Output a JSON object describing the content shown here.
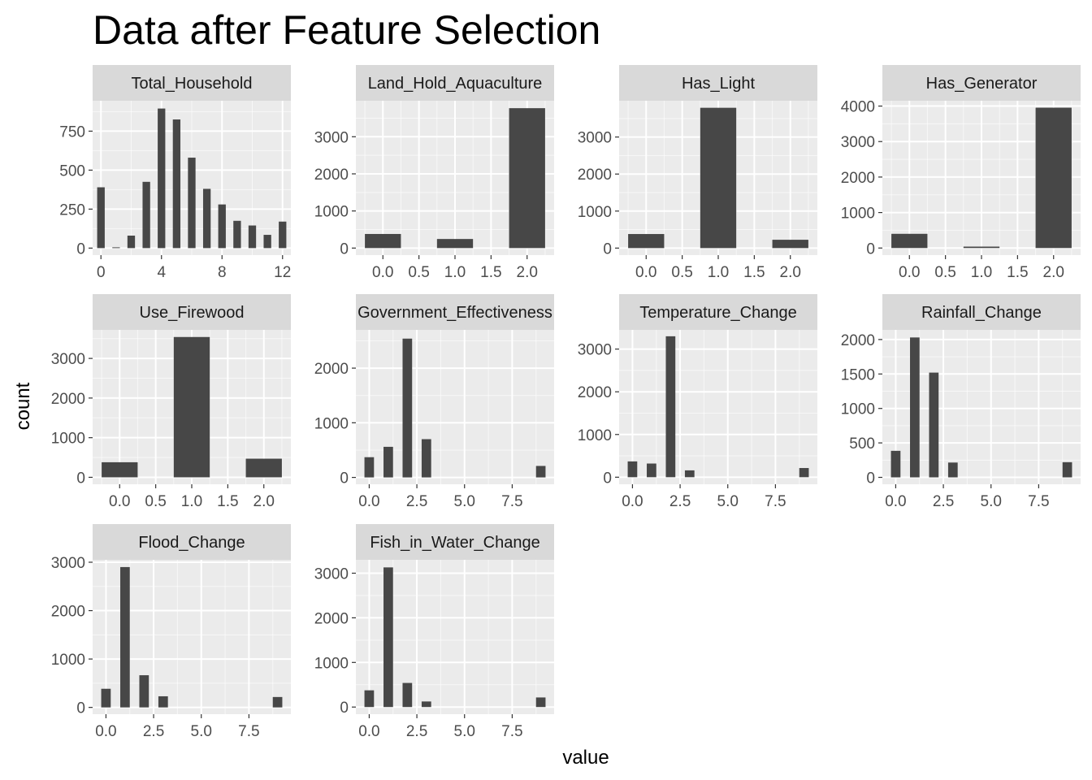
{
  "chart_data": {
    "type": "bar",
    "title": "Data after Feature Selection",
    "xlabel": "value",
    "ylabel": "count",
    "grid": true,
    "colors": {
      "bar": "#474747",
      "panel_background": "#ebebeb",
      "strip_background": "#d9d9d9",
      "grid_major": "#ffffff",
      "tick_text": "#4d4d4d"
    },
    "panels": [
      {
        "name": "Total_Household",
        "x": [
          0,
          1,
          2,
          3,
          4,
          5,
          6,
          7,
          8,
          9,
          10,
          11,
          12
        ],
        "values": [
          390,
          5,
          80,
          425,
          895,
          825,
          580,
          380,
          280,
          175,
          145,
          85,
          170
        ],
        "bin_width": 0.5,
        "xlim": [
          -0.55,
          12.55
        ],
        "ylim": [
          -45,
          945
        ],
        "x_ticks": [
          0,
          4,
          8,
          12
        ],
        "x_tick_labels": [
          "0",
          "4",
          "8",
          "12"
        ],
        "y_ticks": [
          0,
          250,
          500,
          750
        ],
        "y_tick_labels": [
          "0",
          "250",
          "500",
          "750"
        ]
      },
      {
        "name": "Land_Hold_Aquaculture",
        "x": [
          0,
          1,
          2
        ],
        "values": [
          380,
          245,
          3770
        ],
        "bin_width": 0.5,
        "xlim": [
          -0.375,
          2.375
        ],
        "ylim": [
          -190,
          3970
        ],
        "x_ticks": [
          0,
          0.5,
          1,
          1.5,
          2
        ],
        "x_tick_labels": [
          "0.0",
          "0.5",
          "1.0",
          "1.5",
          "2.0"
        ],
        "y_ticks": [
          0,
          1000,
          2000,
          3000
        ],
        "y_tick_labels": [
          "0",
          "1000",
          "2000",
          "3000"
        ]
      },
      {
        "name": "Has_Light",
        "x": [
          0,
          1,
          2
        ],
        "values": [
          380,
          3790,
          225
        ],
        "bin_width": 0.5,
        "xlim": [
          -0.375,
          2.375
        ],
        "ylim": [
          -190,
          3980
        ],
        "x_ticks": [
          0,
          0.5,
          1,
          1.5,
          2
        ],
        "x_tick_labels": [
          "0.0",
          "0.5",
          "1.0",
          "1.5",
          "2.0"
        ],
        "y_ticks": [
          0,
          1000,
          2000,
          3000
        ],
        "y_tick_labels": [
          "0",
          "1000",
          "2000",
          "3000"
        ]
      },
      {
        "name": "Has_Generator",
        "x": [
          0,
          1,
          2
        ],
        "values": [
          400,
          40,
          3955
        ],
        "bin_width": 0.5,
        "xlim": [
          -0.375,
          2.375
        ],
        "ylim": [
          -200,
          4150
        ],
        "x_ticks": [
          0,
          0.5,
          1,
          1.5,
          2
        ],
        "x_tick_labels": [
          "0.0",
          "0.5",
          "1.0",
          "1.5",
          "2.0"
        ],
        "y_ticks": [
          0,
          1000,
          2000,
          3000,
          4000
        ],
        "y_tick_labels": [
          "0",
          "1000",
          "2000",
          "3000",
          "4000"
        ]
      },
      {
        "name": "Use_Firewood",
        "x": [
          0,
          1,
          2
        ],
        "values": [
          380,
          3540,
          470
        ],
        "bin_width": 0.5,
        "xlim": [
          -0.375,
          2.375
        ],
        "ylim": [
          -175,
          3720
        ],
        "x_ticks": [
          0,
          0.5,
          1,
          1.5,
          2
        ],
        "x_tick_labels": [
          "0.0",
          "0.5",
          "1.0",
          "1.5",
          "2.0"
        ],
        "y_ticks": [
          0,
          1000,
          2000,
          3000
        ],
        "y_tick_labels": [
          "0",
          "1000",
          "2000",
          "3000"
        ]
      },
      {
        "name": "Government_Effectiveness",
        "x": [
          0,
          1,
          2,
          3,
          9
        ],
        "values": [
          370,
          560,
          2540,
          700,
          210
        ],
        "bin_width": 0.5,
        "xlim": [
          -0.7,
          9.7
        ],
        "ylim": [
          -125,
          2700
        ],
        "x_ticks": [
          0,
          2.5,
          5,
          7.5
        ],
        "x_tick_labels": [
          "0.0",
          "2.5",
          "5.0",
          "7.5"
        ],
        "y_ticks": [
          0,
          1000,
          2000
        ],
        "y_tick_labels": [
          "0",
          "1000",
          "2000"
        ]
      },
      {
        "name": "Temperature_Change",
        "x": [
          0,
          1,
          2,
          3,
          9
        ],
        "values": [
          370,
          320,
          3300,
          160,
          215
        ],
        "bin_width": 0.5,
        "xlim": [
          -0.7,
          9.7
        ],
        "ylim": [
          -165,
          3450
        ],
        "x_ticks": [
          0,
          2.5,
          5,
          7.5
        ],
        "x_tick_labels": [
          "0.0",
          "2.5",
          "5.0",
          "7.5"
        ],
        "y_ticks": [
          0,
          1000,
          2000,
          3000
        ],
        "y_tick_labels": [
          "0",
          "1000",
          "2000",
          "3000"
        ]
      },
      {
        "name": "Rainfall_Change",
        "x": [
          0,
          1,
          2,
          3,
          9
        ],
        "values": [
          385,
          2030,
          1520,
          215,
          220
        ],
        "bin_width": 0.5,
        "xlim": [
          -0.7,
          9.7
        ],
        "ylim": [
          -100,
          2140
        ],
        "x_ticks": [
          0,
          2.5,
          5,
          7.5
        ],
        "x_tick_labels": [
          "0.0",
          "2.5",
          "5.0",
          "7.5"
        ],
        "y_ticks": [
          0,
          500,
          1000,
          1500,
          2000
        ],
        "y_tick_labels": [
          "0",
          "500",
          "1000",
          "1500",
          "2000"
        ]
      },
      {
        "name": "Flood_Change",
        "x": [
          0,
          1,
          2,
          3,
          9
        ],
        "values": [
          385,
          2900,
          665,
          230,
          215
        ],
        "bin_width": 0.5,
        "xlim": [
          -0.7,
          9.7
        ],
        "ylim": [
          -140,
          3050
        ],
        "x_ticks": [
          0,
          2.5,
          5,
          7.5
        ],
        "x_tick_labels": [
          "0.0",
          "2.5",
          "5.0",
          "7.5"
        ],
        "y_ticks": [
          0,
          1000,
          2000,
          3000
        ],
        "y_tick_labels": [
          "0",
          "1000",
          "2000",
          "3000"
        ]
      },
      {
        "name": "Fish_in_Water_Change",
        "x": [
          0,
          1,
          2,
          3,
          9
        ],
        "values": [
          375,
          3130,
          540,
          125,
          215
        ],
        "bin_width": 0.5,
        "xlim": [
          -0.7,
          9.7
        ],
        "ylim": [
          -160,
          3300
        ],
        "x_ticks": [
          0,
          2.5,
          5,
          7.5
        ],
        "x_tick_labels": [
          "0.0",
          "2.5",
          "5.0",
          "7.5"
        ],
        "y_ticks": [
          0,
          1000,
          2000,
          3000
        ],
        "y_tick_labels": [
          "0",
          "1000",
          "2000",
          "3000"
        ]
      }
    ]
  }
}
